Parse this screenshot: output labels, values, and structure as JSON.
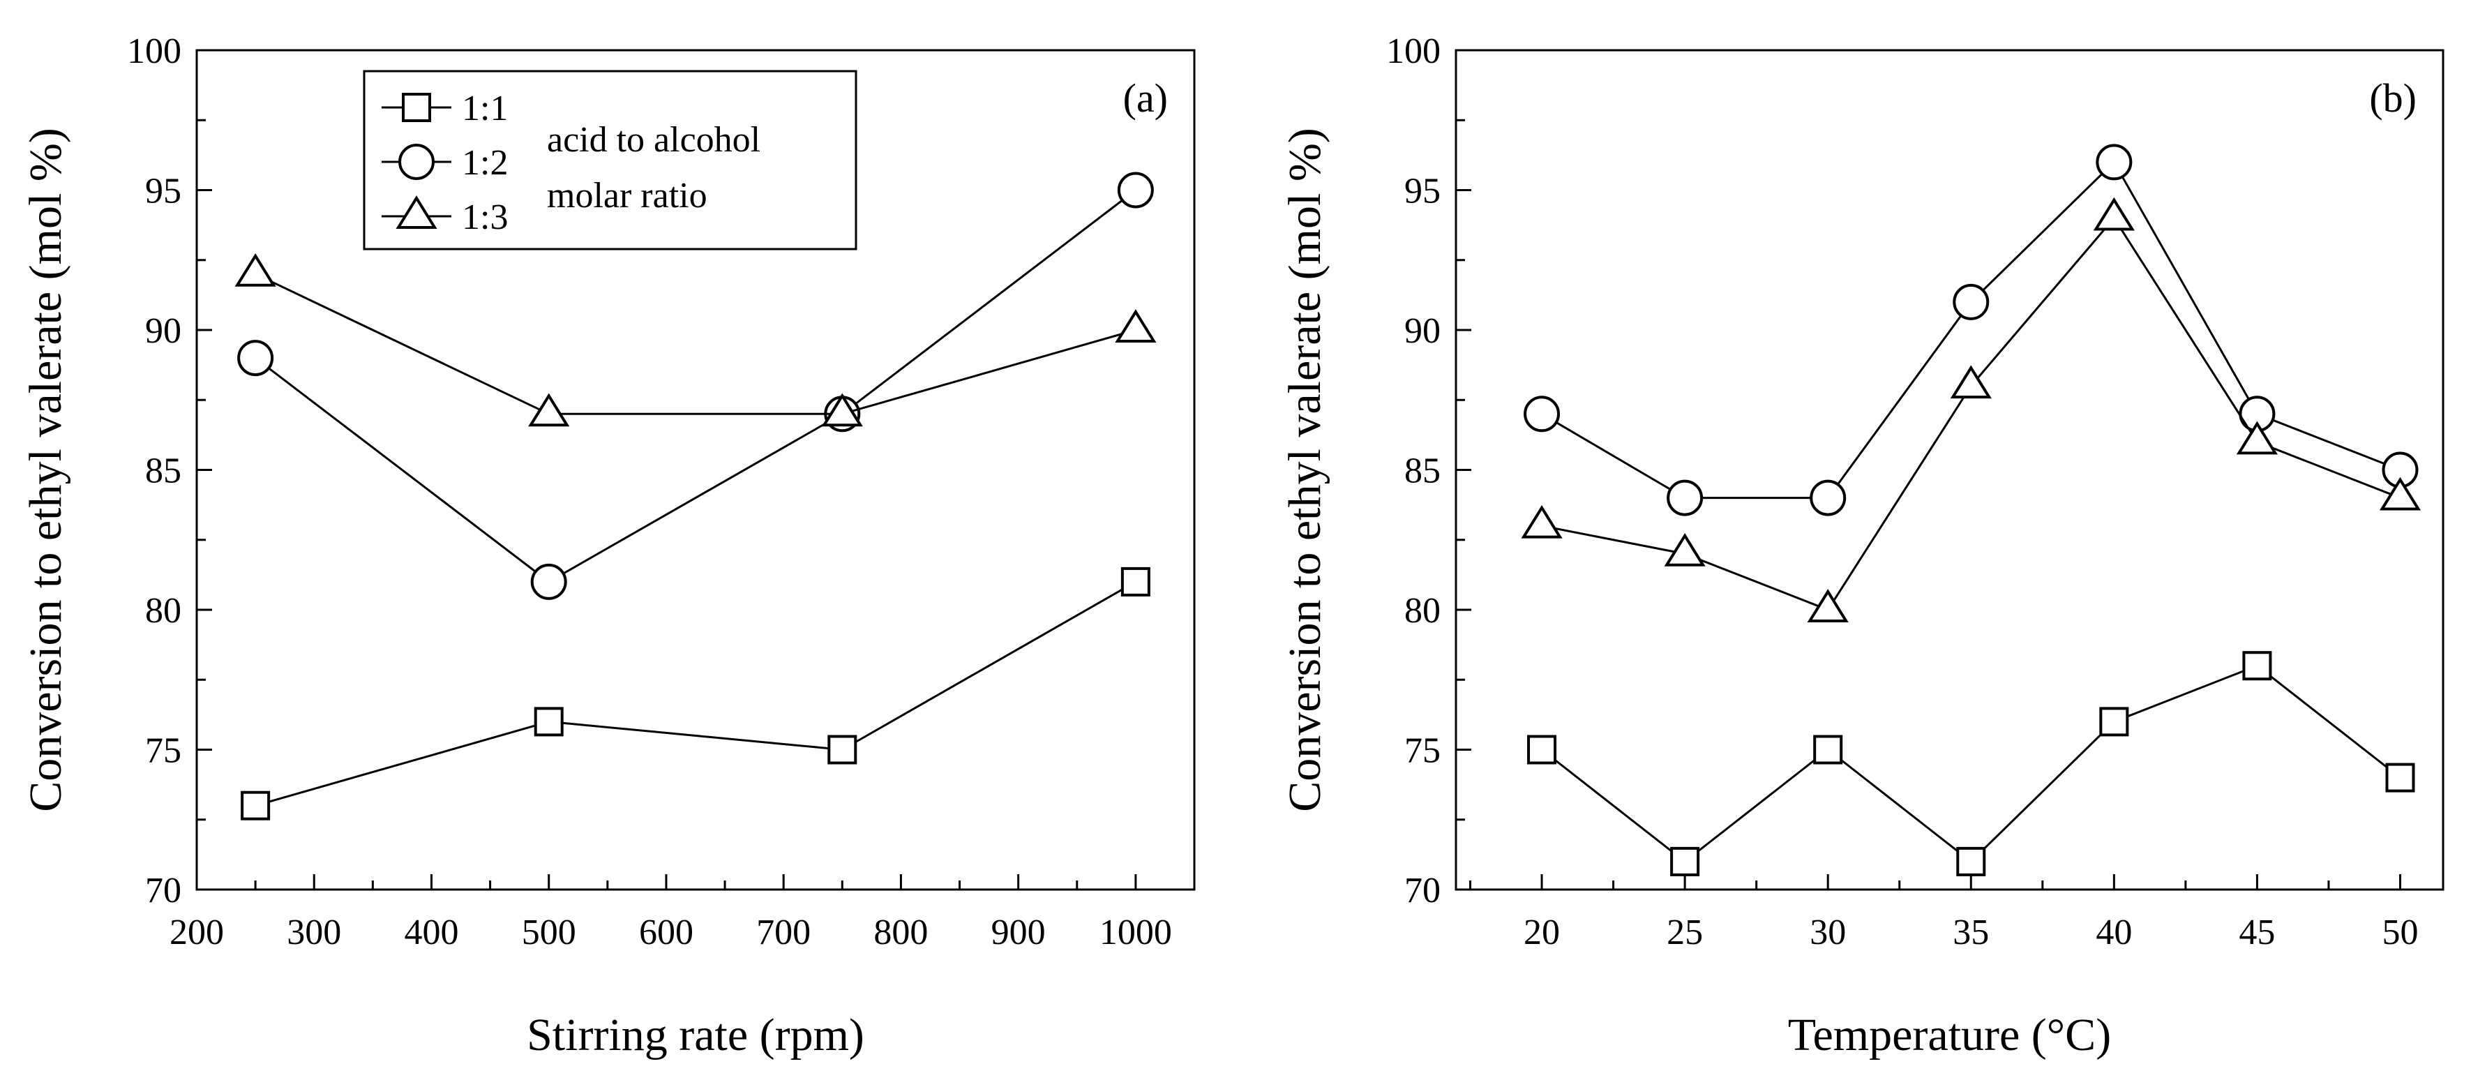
{
  "chart_data": [
    {
      "type": "line",
      "panel_label": "(a)",
      "xlabel": "Stirring rate (rpm)",
      "ylabel": "Conversion to ethyl valerate (mol %)",
      "xlim": [
        200,
        1050
      ],
      "ylim": [
        70,
        100
      ],
      "x_ticks": [
        200,
        300,
        400,
        500,
        600,
        700,
        800,
        900,
        1000
      ],
      "y_ticks": [
        70,
        75,
        80,
        85,
        90,
        95,
        100
      ],
      "x_tick_labels": [
        "200",
        "300",
        "400",
        "500",
        "600",
        "700",
        "800",
        "900",
        "1000"
      ],
      "y_tick_labels": [
        "70",
        "75",
        "80",
        "85",
        "90",
        "95",
        "100"
      ],
      "x": [
        250,
        500,
        750,
        1000
      ],
      "series": [
        {
          "name": "1:1",
          "marker": "square",
          "values": [
            73,
            76,
            75,
            81
          ]
        },
        {
          "name": "1:2",
          "marker": "circle",
          "values": [
            89,
            81,
            87,
            95
          ]
        },
        {
          "name": "1:3",
          "marker": "triangle",
          "values": [
            92,
            87,
            87,
            90
          ]
        }
      ],
      "legend": {
        "placement": "top-left",
        "entries": [
          "1:1",
          "1:2",
          "1:3"
        ],
        "note_line1": "acid to alcohol",
        "note_line2": "molar ratio"
      },
      "grid": false
    },
    {
      "type": "line",
      "panel_label": "(b)",
      "xlabel": "Temperature (°C)",
      "ylabel": "Conversion to ethyl valerate (mol %)",
      "xlim": [
        17,
        51.5
      ],
      "ylim": [
        70,
        100
      ],
      "x_ticks": [
        20,
        25,
        30,
        35,
        40,
        45,
        50
      ],
      "y_ticks": [
        70,
        75,
        80,
        85,
        90,
        95,
        100
      ],
      "x_tick_labels": [
        "20",
        "25",
        "30",
        "35",
        "40",
        "45",
        "50"
      ],
      "y_tick_labels": [
        "70",
        "75",
        "80",
        "85",
        "90",
        "95",
        "100"
      ],
      "x": [
        20,
        25,
        30,
        35,
        40,
        45,
        50
      ],
      "series": [
        {
          "name": "1:1",
          "marker": "square",
          "values": [
            75,
            71,
            75,
            71,
            76,
            78,
            74
          ]
        },
        {
          "name": "1:2",
          "marker": "circle",
          "values": [
            87,
            84,
            84,
            91,
            96,
            87,
            85
          ]
        },
        {
          "name": "1:3",
          "marker": "triangle",
          "values": [
            83,
            82,
            80,
            88,
            94,
            86,
            84
          ]
        }
      ],
      "grid": false
    }
  ]
}
